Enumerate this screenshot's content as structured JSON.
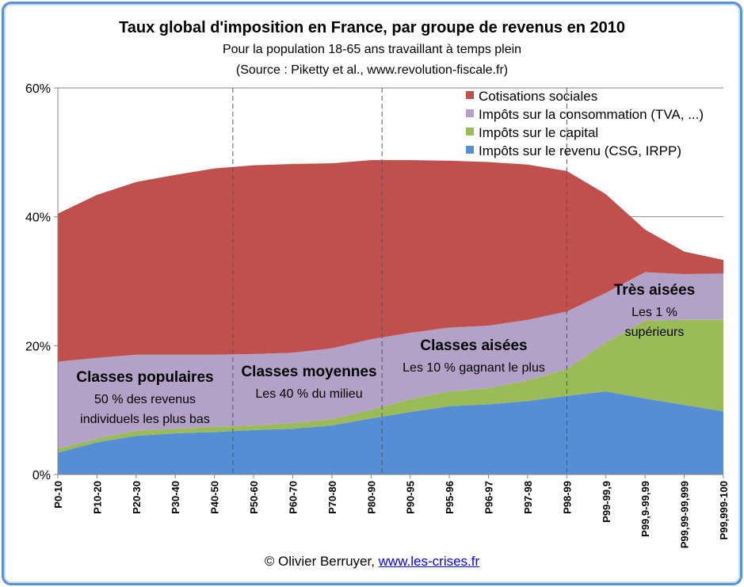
{
  "chart_data": {
    "type": "area",
    "stacked": true,
    "title": "Taux global d'imposition en France, par groupe de revenus en 2010",
    "subtitle": [
      "Pour la population 18-65 ans travaillant à temps plein",
      "(Source : Piketty et al., www.revolution-fiscale.fr)"
    ],
    "xlabel": "",
    "ylabel": "",
    "ylim": [
      0,
      60
    ],
    "yticks": [
      "0%",
      "20%",
      "40%",
      "60%"
    ],
    "grid": true,
    "legend_position": "top-right",
    "categories": [
      "P0-10",
      "P10-20",
      "P20-30",
      "P30-40",
      "P40-50",
      "P50-60",
      "P60-70",
      "P70-80",
      "P80-90",
      "P90-95",
      "P95-96",
      "P96-97",
      "P97-98",
      "P98-99",
      "P99-99,9",
      "P99,9-99,99",
      "P99,99-99,999",
      "P99,999-100"
    ],
    "series": [
      {
        "name": "Impôts sur le revenu (CSG, IRPP)",
        "color": "#558ed5",
        "values": [
          3.4,
          5.0,
          6.0,
          6.4,
          6.6,
          6.9,
          7.1,
          7.6,
          8.7,
          9.7,
          10.6,
          10.9,
          11.4,
          12.2,
          12.9,
          11.8,
          10.8,
          9.8
        ]
      },
      {
        "name": "Impôts sur le capital",
        "color": "#9bbb59",
        "values": [
          0.6,
          0.6,
          0.8,
          0.7,
          0.8,
          0.7,
          0.9,
          1.0,
          1.3,
          2.0,
          2.3,
          2.5,
          3.2,
          4.2,
          7.6,
          12.1,
          13.2,
          14.2
        ]
      },
      {
        "name": "Impôts sur la consommation (TVA, ...)",
        "color": "#b3a2c7",
        "values": [
          13.5,
          12.5,
          11.8,
          11.5,
          11.2,
          11.1,
          10.9,
          11.0,
          11.0,
          10.3,
          9.9,
          9.7,
          9.4,
          8.9,
          7.7,
          7.5,
          7.1,
          7.2
        ]
      },
      {
        "name": "Cotisations sociales",
        "color": "#c0504d",
        "values": [
          23.0,
          25.3,
          26.8,
          27.9,
          28.9,
          29.3,
          29.3,
          28.7,
          27.8,
          26.8,
          25.9,
          25.4,
          24.1,
          21.8,
          15.3,
          6.6,
          3.5,
          2.1
        ]
      }
    ],
    "annotations": [
      {
        "title": "Classes populaires",
        "text": [
          "50 % des revenus",
          "individuels les plus bas"
        ]
      },
      {
        "title": "Classes moyennes",
        "text": [
          "Les 40 % du milieu"
        ]
      },
      {
        "title": "Classes aisées",
        "text": [
          "Les 10 % gagnant le plus"
        ]
      },
      {
        "title": "Très aisées",
        "text": [
          "Les 1 %",
          "supérieurs"
        ]
      }
    ]
  },
  "footer": {
    "credit": "© Olivier Berruyer, ",
    "link": "www.les-crises.fr"
  }
}
